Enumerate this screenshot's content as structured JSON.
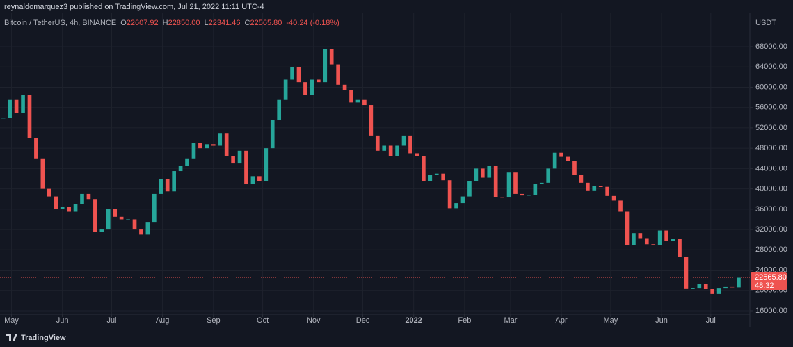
{
  "header": {
    "publisher": "reynaldomarquez3 published on TradingView.com, Jul 21, 2022 11:11 UTC-4"
  },
  "footer": {
    "brand": "TradingView"
  },
  "chart_data": {
    "type": "candlestick",
    "symbol": "Bitcoin / TetherUS, 4h, BINANCE",
    "readout": [
      {
        "key": "O",
        "value": "22607.92"
      },
      {
        "key": "H",
        "value": "22850.00"
      },
      {
        "key": "L",
        "value": "22341.46"
      },
      {
        "key": "C",
        "value": "22565.80"
      }
    ],
    "change": "-40.24 (-0.18%)",
    "y_axis_unit": "USDT",
    "last_price": {
      "value": 22565.8,
      "label": "22565.80"
    },
    "countdown": "48:32",
    "up_color": "#26a69a",
    "down_color": "#ef5350",
    "close": [
      54000,
      57500,
      55000,
      58500,
      50000,
      46000,
      40000,
      38500,
      36000,
      36500,
      35500,
      37000,
      39000,
      38000,
      31500,
      32000,
      36000,
      34500,
      34000,
      34000,
      32000,
      31000,
      33500,
      39000,
      42000,
      39500,
      43500,
      44500,
      46000,
      49000,
      48000,
      48800,
      48500,
      51000,
      46500,
      45000,
      47500,
      41000,
      42500,
      41500,
      48000,
      53500,
      57500,
      61500,
      64000,
      61000,
      58500,
      61500,
      61000,
      67500,
      64500,
      60500,
      59500,
      57000,
      57500,
      56500,
      50500,
      47500,
      48500,
      46500,
      48500,
      50500,
      47000,
      46400,
      41500,
      42700,
      43000,
      41700,
      36200,
      37200,
      38500,
      41500,
      44000,
      42200,
      44500,
      38400,
      38300,
      43200,
      39000,
      38700,
      38800,
      41000,
      41200,
      44000,
      47100,
      46300,
      45500,
      42700,
      41200,
      39700,
      40500,
      40400,
      38600,
      37700,
      35500,
      29000,
      31300,
      30300,
      29100,
      29000,
      31800,
      29700,
      30200,
      26600,
      20400,
      20500,
      21200,
      20300,
      19300,
      20500,
      20800,
      20600,
      22500
    ],
    "xlim": [
      -0.5,
      113.7
    ],
    "xticks": [
      {
        "value": 1.25,
        "label": "May"
      },
      {
        "value": 9,
        "label": "Jun"
      },
      {
        "value": 16.5,
        "label": "Jul"
      },
      {
        "value": 24.25,
        "label": "Aug"
      },
      {
        "value": 32,
        "label": "Sep"
      },
      {
        "value": 39.5,
        "label": "Oct"
      },
      {
        "value": 47.25,
        "label": "Nov"
      },
      {
        "value": 54.75,
        "label": "Dec"
      },
      {
        "value": 62.5,
        "label": "2022"
      },
      {
        "value": 70.25,
        "label": "Feb"
      },
      {
        "value": 77.25,
        "label": "Mar"
      },
      {
        "value": 85,
        "label": "Apr"
      },
      {
        "value": 92.5,
        "label": "May"
      },
      {
        "value": 100.25,
        "label": "Jun"
      },
      {
        "value": 107.75,
        "label": "Jul"
      }
    ],
    "ylim": [
      15316,
      74705
    ],
    "yticks": [
      {
        "value": 16000,
        "label": "16000.00"
      },
      {
        "value": 20000,
        "label": "20000.00"
      },
      {
        "value": 24000,
        "label": "24000.00"
      },
      {
        "value": 28000,
        "label": "28000.00"
      },
      {
        "value": 32000,
        "label": "32000.00"
      },
      {
        "value": 36000,
        "label": "36000.00"
      },
      {
        "value": 40000,
        "label": "40000.00"
      },
      {
        "value": 44000,
        "label": "44000.00"
      },
      {
        "value": 48000,
        "label": "48000.00"
      },
      {
        "value": 52000,
        "label": "52000.00"
      },
      {
        "value": 56000,
        "label": "56000.00"
      },
      {
        "value": 60000,
        "label": "60000.00"
      },
      {
        "value": 64000,
        "label": "64000.00"
      },
      {
        "value": 68000,
        "label": "68000.00"
      }
    ],
    "grid": true
  }
}
